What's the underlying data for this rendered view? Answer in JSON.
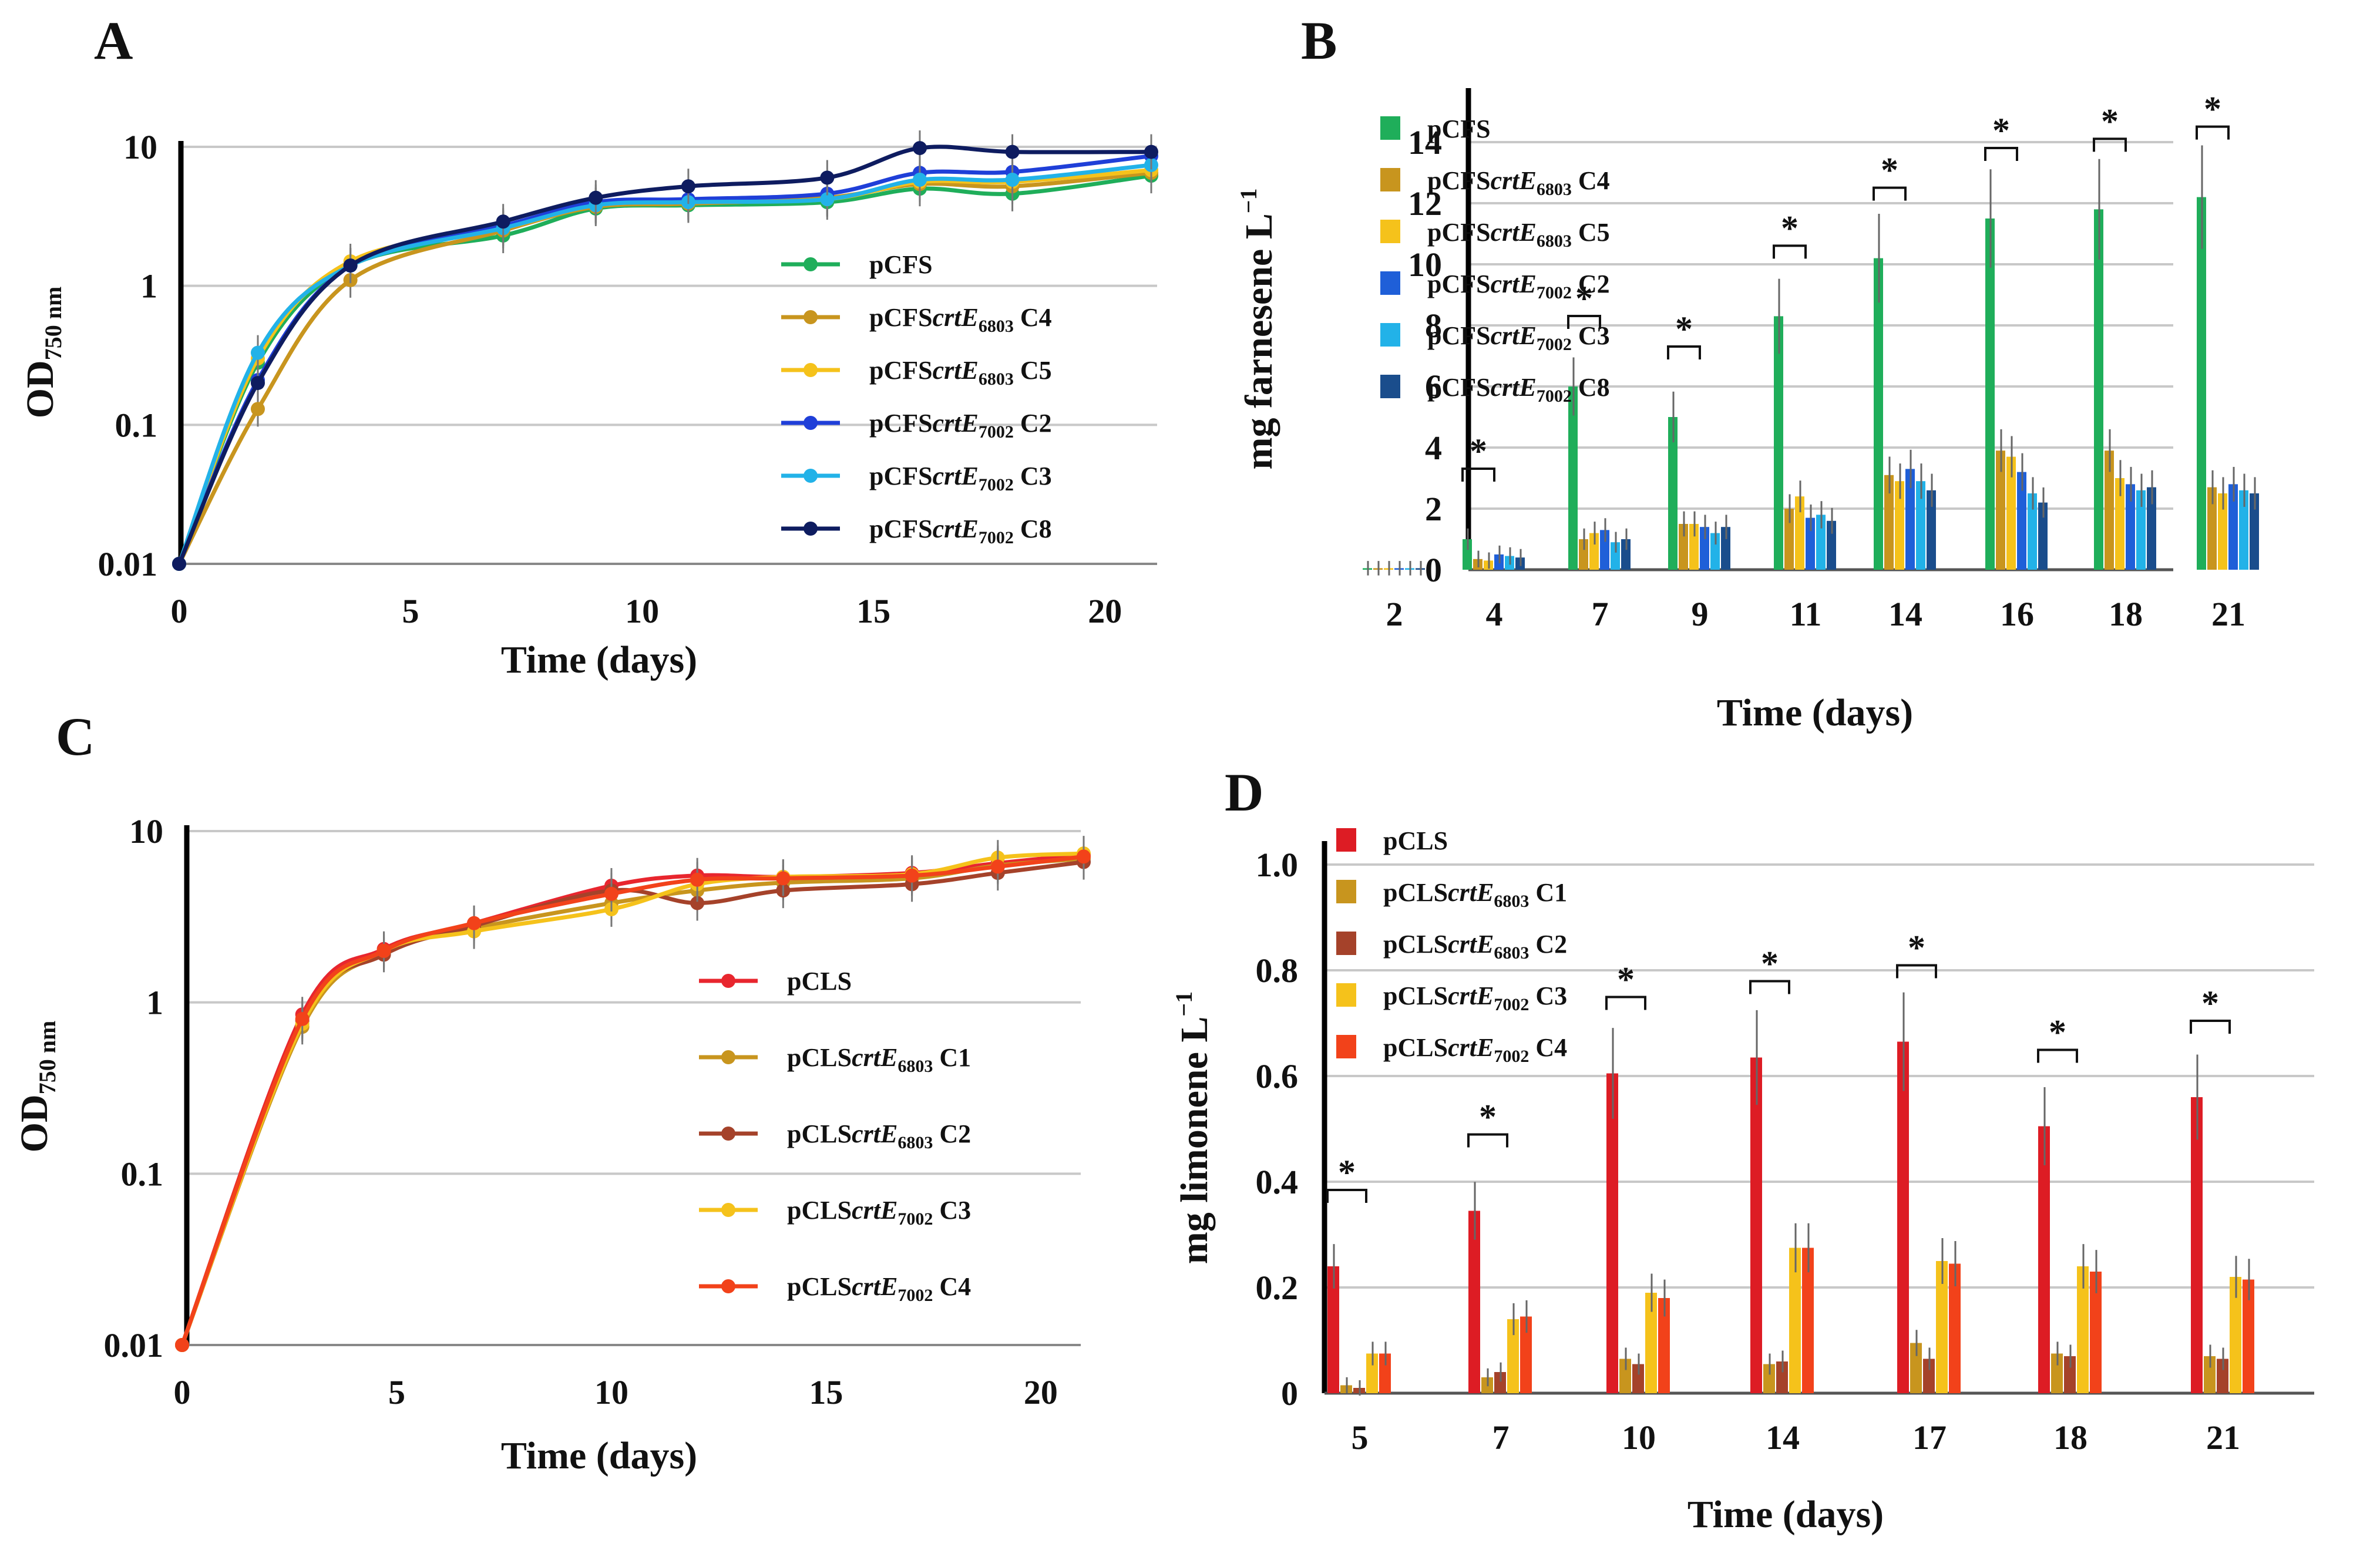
{
  "chart_data": [
    {
      "panel": "A",
      "type": "line",
      "yscale": "log",
      "ylabel": "OD",
      "ylabel_sub": "750 nm",
      "xlabel": "Time (days)",
      "xlim": [
        0,
        21
      ],
      "ylim": [
        0.01,
        10
      ],
      "xticks": [
        "0",
        "5",
        "10",
        "15",
        "20"
      ],
      "yticks": [
        "0.01",
        "0.1",
        "1",
        "10"
      ],
      "x": [
        0,
        1.7,
        3.7,
        7,
        9,
        11,
        14,
        16,
        18,
        21
      ],
      "series": [
        {
          "prefix": "pCFS",
          "gene": "",
          "sub": "",
          "suffix": "",
          "color": "#1fae5a",
          "values": [
            0.01,
            0.28,
            1.4,
            2.3,
            3.6,
            3.8,
            4.0,
            5.0,
            4.6,
            6.2
          ]
        },
        {
          "prefix": "pCFS",
          "gene": "crtE",
          "sub": "6803",
          "suffix": " C4",
          "color": "#c8951e",
          "values": [
            0.01,
            0.13,
            1.1,
            2.5,
            3.7,
            3.9,
            4.3,
            5.4,
            5.2,
            6.5
          ]
        },
        {
          "prefix": "pCFS",
          "gene": "crtE",
          "sub": "6803",
          "suffix": " C5",
          "color": "#f5c21b",
          "values": [
            0.01,
            0.3,
            1.5,
            2.6,
            3.8,
            4.0,
            4.2,
            5.6,
            5.6,
            6.8
          ]
        },
        {
          "prefix": "pCFS",
          "gene": "crtE",
          "sub": "7002",
          "suffix": " C2",
          "color": "#1f3fd8",
          "values": [
            0.01,
            0.21,
            1.4,
            2.7,
            4.0,
            4.2,
            4.6,
            6.5,
            6.6,
            8.6
          ]
        },
        {
          "prefix": "pCFS",
          "gene": "crtE",
          "sub": "7002",
          "suffix": " C3",
          "color": "#22b2e8",
          "values": [
            0.01,
            0.33,
            1.4,
            2.6,
            3.8,
            4.0,
            4.2,
            5.8,
            5.8,
            7.4
          ]
        },
        {
          "prefix": "pCFS",
          "gene": "crtE",
          "sub": "7002",
          "suffix": " C8",
          "color": "#0e1c60",
          "values": [
            0.01,
            0.2,
            1.4,
            2.9,
            4.3,
            5.2,
            6.0,
            9.8,
            9.2,
            9.2
          ]
        }
      ]
    },
    {
      "panel": "B",
      "type": "bar",
      "ylabel": "mg farnesene L",
      "ylabel_sup": "−1",
      "xlabel": "Time (days)",
      "ylim": [
        0,
        15
      ],
      "yticks": [
        "0",
        "2",
        "4",
        "6",
        "8",
        "10",
        "12",
        "14"
      ],
      "categories": [
        "2",
        "4",
        "7",
        "9",
        "11",
        "14",
        "16",
        "18",
        "21"
      ],
      "significance": [
        "",
        "*",
        "*",
        "*",
        "*",
        "*",
        "*",
        "*",
        "*"
      ],
      "series": [
        {
          "prefix": "pCFS",
          "gene": "",
          "sub": "",
          "suffix": "",
          "color": "#1fae5a",
          "values": [
            0.05,
            1.0,
            6.0,
            5.0,
            8.3,
            10.2,
            11.5,
            11.8,
            12.2
          ]
        },
        {
          "prefix": "pCFS",
          "gene": "crtE",
          "sub": "6803",
          "suffix": " C4",
          "color": "#c8951e",
          "values": [
            0.05,
            0.35,
            1.0,
            1.5,
            2.0,
            3.1,
            3.9,
            3.9,
            2.7
          ]
        },
        {
          "prefix": "pCFS",
          "gene": "crtE",
          "sub": "6803",
          "suffix": " C5",
          "color": "#f5c21b",
          "values": [
            0.05,
            0.3,
            1.2,
            1.5,
            2.4,
            2.9,
            3.7,
            3.0,
            2.5
          ]
        },
        {
          "prefix": "pCFS",
          "gene": "crtE",
          "sub": "7002",
          "suffix": " C2",
          "color": "#1f5fd8",
          "values": [
            0.05,
            0.5,
            1.3,
            1.4,
            1.7,
            3.3,
            3.2,
            2.8,
            2.8
          ]
        },
        {
          "prefix": "pCFS",
          "gene": "crtE",
          "sub": "7002",
          "suffix": " C3",
          "color": "#22b2e8",
          "values": [
            0.05,
            0.45,
            0.9,
            1.2,
            1.8,
            2.9,
            2.5,
            2.6,
            2.6
          ]
        },
        {
          "prefix": "pCFS",
          "gene": "crtE",
          "sub": "7002",
          "suffix": " C8",
          "color": "#1a4d8c",
          "values": [
            0.05,
            0.4,
            1.0,
            1.4,
            1.6,
            2.6,
            2.2,
            2.7,
            2.5
          ]
        }
      ]
    },
    {
      "panel": "C",
      "type": "line",
      "yscale": "log",
      "ylabel": "OD",
      "ylabel_sub": "750 nm",
      "xlabel": "Time (days)",
      "xlim": [
        0,
        21
      ],
      "ylim": [
        0.01,
        10
      ],
      "xticks": [
        "0",
        "5",
        "10",
        "15",
        "20"
      ],
      "yticks": [
        "0.01",
        "0.1",
        "1",
        "10"
      ],
      "x": [
        0,
        2.8,
        4.7,
        6.8,
        10,
        12,
        14,
        17,
        19,
        21
      ],
      "series": [
        {
          "prefix": "pCLS",
          "gene": "",
          "sub": "",
          "suffix": "",
          "color": "#e8262e",
          "values": [
            0.01,
            0.85,
            2.05,
            2.9,
            4.8,
            5.5,
            5.4,
            5.7,
            6.5,
            7.3
          ]
        },
        {
          "prefix": "pCLS",
          "gene": "crtE",
          "sub": "6803",
          "suffix": " C1",
          "color": "#c8951e",
          "values": [
            0.01,
            0.72,
            1.95,
            2.7,
            3.8,
            4.5,
            5.0,
            5.3,
            6.3,
            6.9
          ]
        },
        {
          "prefix": "pCLS",
          "gene": "crtE",
          "sub": "6803",
          "suffix": " C2",
          "color": "#a5422a",
          "values": [
            0.01,
            0.78,
            1.9,
            2.8,
            4.5,
            3.8,
            4.5,
            4.9,
            5.7,
            6.6
          ]
        },
        {
          "prefix": "pCLS",
          "gene": "crtE",
          "sub": "7002",
          "suffix": " C3",
          "color": "#f5c21b",
          "values": [
            0.01,
            0.75,
            2.0,
            2.6,
            3.5,
            4.9,
            5.4,
            5.6,
            7.0,
            7.4
          ]
        },
        {
          "prefix": "pCLS",
          "gene": "crtE",
          "sub": "7002",
          "suffix": " C4",
          "color": "#f2421a",
          "values": [
            0.01,
            0.8,
            2.0,
            2.9,
            4.3,
            5.2,
            5.3,
            5.5,
            6.2,
            7.1
          ]
        }
      ]
    },
    {
      "panel": "D",
      "type": "bar",
      "ylabel": "mg limonene L",
      "ylabel_sup": "−1",
      "xlabel": "Time (days)",
      "ylim": [
        0,
        1.0
      ],
      "yticks": [
        "0",
        "0.2",
        "0.4",
        "0.6",
        "0.8",
        "1.0"
      ],
      "categories": [
        "5",
        "7",
        "10",
        "14",
        "17",
        "18",
        "21"
      ],
      "significance": [
        "*",
        "*",
        "*",
        "*",
        "*",
        "*",
        "*"
      ],
      "series": [
        {
          "prefix": "pCLS",
          "gene": "",
          "sub": "",
          "suffix": "",
          "color": "#dd1c24",
          "values": [
            0.24,
            0.345,
            0.605,
            0.635,
            0.665,
            0.505,
            0.56
          ]
        },
        {
          "prefix": "pCLS",
          "gene": "crtE",
          "sub": "6803",
          "suffix": " C1",
          "color": "#c8951e",
          "values": [
            0.015,
            0.03,
            0.065,
            0.055,
            0.095,
            0.075,
            0.07
          ]
        },
        {
          "prefix": "pCLS",
          "gene": "crtE",
          "sub": "6803",
          "suffix": " C2",
          "color": "#a5422a",
          "values": [
            0.01,
            0.04,
            0.055,
            0.06,
            0.065,
            0.07,
            0.065
          ]
        },
        {
          "prefix": "pCLS",
          "gene": "crtE",
          "sub": "7002",
          "suffix": " C3",
          "color": "#f5c21b",
          "values": [
            0.075,
            0.14,
            0.19,
            0.275,
            0.25,
            0.24,
            0.22
          ]
        },
        {
          "prefix": "pCLS",
          "gene": "crtE",
          "sub": "7002",
          "suffix": " C4",
          "color": "#f2421a",
          "values": [
            0.075,
            0.145,
            0.18,
            0.275,
            0.245,
            0.23,
            0.215
          ]
        }
      ]
    }
  ]
}
